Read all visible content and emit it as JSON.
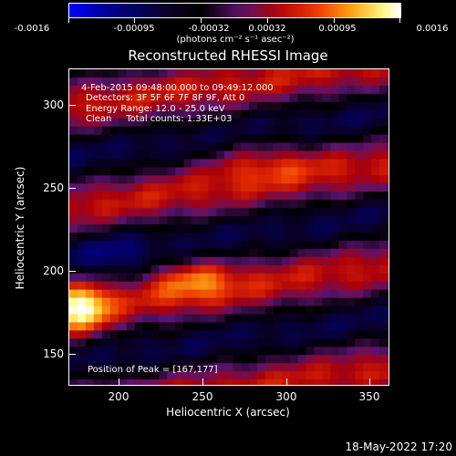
{
  "colorbar": {
    "tick_labels": [
      "-0.0016",
      "-0.00095",
      "-0.00032",
      "0.00032",
      "0.00095",
      "0.0016"
    ],
    "units": "(photons cm⁻² s⁻¹ asec⁻²)"
  },
  "plot": {
    "title": "Reconstructed RHESSI Image",
    "annotations": {
      "time": "4-Feb-2015 09:48:00.000 to 09:49:12.000",
      "detectors": "Detectors: 3F 5F 6F 7F 8F 9F, Att 0",
      "energy": "Energy Range: 12.0 - 25.0 keV",
      "clean": "Clean     Total counts: 1.33E+03",
      "peak": "Position of Peak = [167,177]"
    },
    "xlabel": "Heliocentric X (arcsec)",
    "ylabel": "Heliocentric Y (arcsec)",
    "x_ticks": [
      "200",
      "250",
      "300",
      "350"
    ],
    "y_ticks": [
      "300",
      "250",
      "200",
      "150"
    ]
  },
  "footer": {
    "timestamp": "18-May-2022 17:20"
  },
  "colors": {
    "background": "#000000",
    "foreground": "#ffffff"
  }
}
